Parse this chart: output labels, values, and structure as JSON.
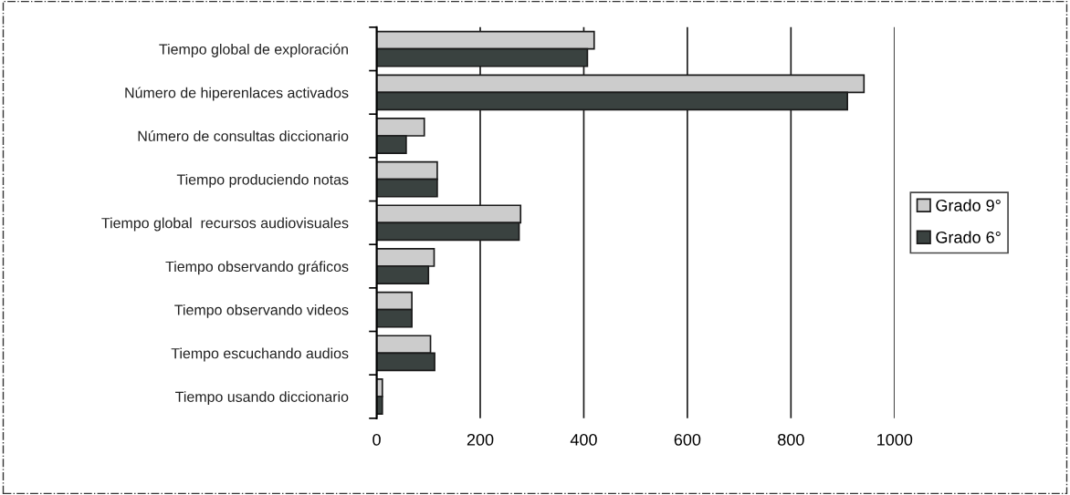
{
  "chart_data": {
    "type": "bar",
    "orientation": "horizontal",
    "categories": [
      "Tiempo global de exploración",
      "Número de hiperenlaces activados",
      "Número de consultas diccionario",
      "Tiempo produciendo notas",
      "Tiempo global  recursos audiovisuales",
      "Tiempo observando gráficos",
      "Tiempo observando videos",
      "Tiempo escuchando audios",
      "Tiempo usando diccionario"
    ],
    "series": [
      {
        "name": "Grado 9°",
        "color": "#cccccc",
        "values": [
          420,
          941,
          92,
          117,
          278,
          111,
          68,
          104,
          11
        ]
      },
      {
        "name": "Grado 6°",
        "color": "#3a4240",
        "values": [
          407,
          909,
          57,
          117,
          275,
          100,
          68,
          112,
          11
        ]
      }
    ],
    "xlim": [
      0,
      1000
    ],
    "xticks": [
      0,
      200,
      400,
      600,
      800,
      1000
    ],
    "grid": "x",
    "legend": "right"
  }
}
